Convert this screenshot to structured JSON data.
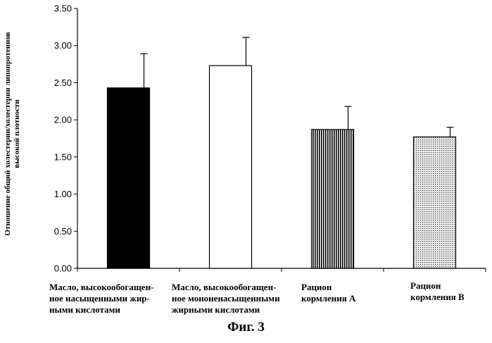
{
  "chart_data": {
    "type": "bar",
    "title": "",
    "xlabel": "",
    "ylabel_lines": [
      "Отношение общий холестерин/холестерин липопротеинов",
      "высокой плотности"
    ],
    "ylim": [
      0,
      3.5
    ],
    "yticks": [
      "0.00",
      "0.50",
      "1.00",
      "1.50",
      "2.00",
      "2.50",
      "3.00",
      "3.50"
    ],
    "categories": [
      [
        "Масло, высокообогащен-",
        "ное насыщенными жир-",
        "ными кислотами"
      ],
      [
        "Масло, высокообогащен-",
        "ное мононенасыщенными",
        "жирными кислотами"
      ],
      [
        "Рацион",
        "кормления А"
      ],
      [
        "Рацион",
        "кормления В"
      ]
    ],
    "values": [
      2.43,
      2.73,
      1.87,
      1.77
    ],
    "errors": [
      0.46,
      0.38,
      0.31,
      0.13
    ],
    "fills": [
      "solid",
      "empty",
      "vertical-stripes",
      "dots"
    ],
    "caption": "Фиг. 3"
  }
}
